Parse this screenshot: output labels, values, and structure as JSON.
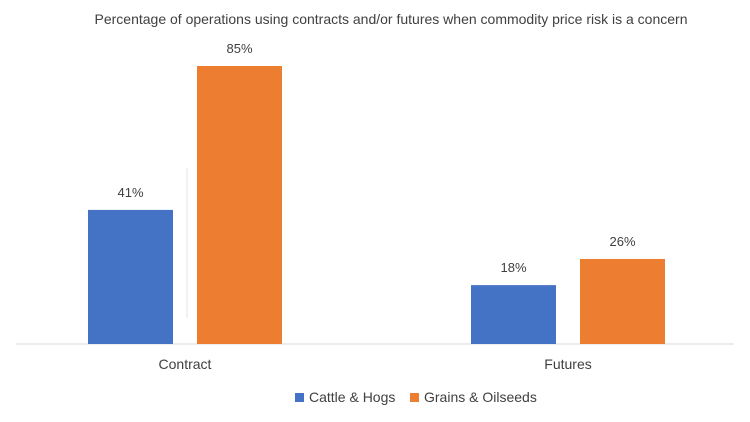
{
  "chart_data": {
    "type": "bar",
    "title": "Percentage of operations using contracts and/or futures when commodity price risk is a concern",
    "categories": [
      "Contract",
      "Futures"
    ],
    "series": [
      {
        "name": "Cattle & Hogs",
        "values": [
          41,
          18
        ],
        "labels": [
          "41%",
          "18%"
        ],
        "color": "#4472C4"
      },
      {
        "name": "Grains & Oilseeds",
        "values": [
          85,
          26
        ],
        "labels": [
          "85%",
          "26%"
        ],
        "color": "#ED7D31"
      }
    ],
    "ylim": [
      0,
      85
    ],
    "grid": false,
    "legend_position": "bottom-center",
    "xlabel": "",
    "ylabel": ""
  },
  "colors": {
    "axis": "#D9D9D9",
    "text": "#404040"
  }
}
